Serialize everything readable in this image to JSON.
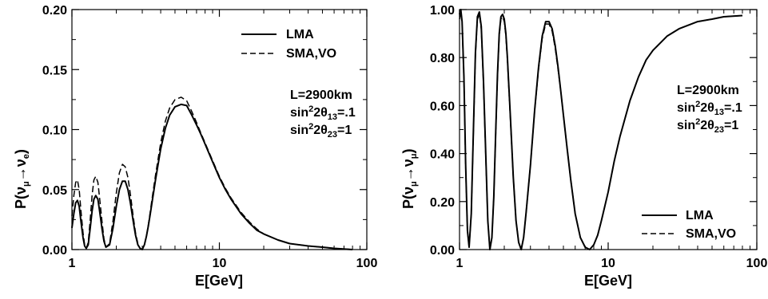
{
  "chart_data": [
    {
      "type": "line",
      "xscale": "log",
      "xlim": [
        1,
        100
      ],
      "ylim": [
        0,
        0.2
      ],
      "xticks": [
        1,
        10,
        100
      ],
      "xtick_labels": [
        "1",
        "10",
        "100"
      ],
      "yticks": [
        0,
        0.05,
        0.1,
        0.15,
        0.2
      ],
      "ytick_labels": [
        "0.00",
        "0.05",
        "0.10",
        "0.15",
        "0.20"
      ],
      "xlabel": "E[GeV]",
      "ylabel": "P(ν_μ→ν_e)",
      "grid": false,
      "legend_position": "top-right",
      "annotations": [
        "L=2900km",
        "sin²2θ13=.1",
        "sin²2θ23=1"
      ],
      "series": [
        {
          "name": "LMA",
          "style": "solid",
          "x": [
            1.0,
            1.03,
            1.06,
            1.09,
            1.12,
            1.15,
            1.19,
            1.22,
            1.25,
            1.29,
            1.33,
            1.37,
            1.41,
            1.45,
            1.5,
            1.55,
            1.6,
            1.65,
            1.7,
            1.8,
            1.9,
            2.0,
            2.1,
            2.2,
            2.3,
            2.4,
            2.5,
            2.6,
            2.7,
            2.8,
            2.9,
            3.0,
            3.1,
            3.2,
            3.3,
            3.4,
            3.5,
            3.7,
            4.0,
            4.3,
            4.6,
            5.0,
            5.5,
            6.0,
            6.5,
            7.0,
            7.5,
            8.0,
            9.0,
            10.0,
            11.0,
            12.0,
            14.0,
            16.0,
            18.0,
            20.0,
            25.0,
            30.0,
            40.0,
            50.0,
            60.0,
            80.0
          ],
          "y": [
            0.018,
            0.03,
            0.039,
            0.041,
            0.036,
            0.024,
            0.01,
            0.003,
            0.001,
            0.004,
            0.018,
            0.032,
            0.042,
            0.045,
            0.042,
            0.03,
            0.017,
            0.007,
            0.002,
            0.004,
            0.018,
            0.036,
            0.05,
            0.057,
            0.057,
            0.05,
            0.038,
            0.024,
            0.012,
            0.004,
            0.001,
            0.0,
            0.004,
            0.011,
            0.02,
            0.03,
            0.04,
            0.059,
            0.084,
            0.101,
            0.112,
            0.119,
            0.121,
            0.12,
            0.112,
            0.104,
            0.096,
            0.088,
            0.073,
            0.06,
            0.05,
            0.042,
            0.03,
            0.022,
            0.016,
            0.013,
            0.008,
            0.005,
            0.003,
            0.002,
            0.001,
            0.0
          ]
        },
        {
          "name": "SMA,VO",
          "style": "dashed",
          "x": [
            1.0,
            1.03,
            1.06,
            1.09,
            1.12,
            1.15,
            1.19,
            1.22,
            1.25,
            1.29,
            1.33,
            1.37,
            1.41,
            1.45,
            1.5,
            1.55,
            1.6,
            1.65,
            1.7,
            1.8,
            1.9,
            2.0,
            2.1,
            2.2,
            2.3,
            2.4,
            2.5,
            2.6,
            2.7,
            2.8,
            2.9,
            3.0,
            3.1,
            3.2,
            3.3,
            3.4,
            3.5,
            3.7,
            4.0,
            4.3,
            4.6,
            5.0,
            5.5,
            6.0,
            6.5,
            7.0,
            7.5,
            8.0,
            9.0,
            10.0,
            11.0,
            12.0,
            14.0,
            16.0,
            18.0,
            20.0,
            25.0,
            30.0,
            40.0,
            50.0,
            60.0,
            80.0
          ],
          "y": [
            0.028,
            0.045,
            0.056,
            0.058,
            0.05,
            0.033,
            0.014,
            0.004,
            0.001,
            0.006,
            0.025,
            0.045,
            0.058,
            0.061,
            0.056,
            0.04,
            0.023,
            0.009,
            0.002,
            0.005,
            0.024,
            0.047,
            0.064,
            0.071,
            0.069,
            0.06,
            0.045,
            0.028,
            0.014,
            0.005,
            0.001,
            0.0,
            0.004,
            0.011,
            0.021,
            0.032,
            0.043,
            0.063,
            0.089,
            0.107,
            0.118,
            0.125,
            0.127,
            0.124,
            0.115,
            0.106,
            0.097,
            0.089,
            0.074,
            0.061,
            0.051,
            0.043,
            0.031,
            0.023,
            0.017,
            0.013,
            0.008,
            0.005,
            0.003,
            0.002,
            0.001,
            0.0
          ]
        }
      ]
    },
    {
      "type": "line",
      "xscale": "log",
      "xlim": [
        1,
        100
      ],
      "ylim": [
        0,
        1.0
      ],
      "xticks": [
        1,
        10,
        100
      ],
      "xtick_labels": [
        "1",
        "10",
        "100"
      ],
      "yticks": [
        0,
        0.2,
        0.4,
        0.6,
        0.8,
        1.0
      ],
      "ytick_labels": [
        "0.00",
        "0.20",
        "0.40",
        "0.60",
        "0.80",
        "1.00"
      ],
      "xlabel": "E[GeV]",
      "ylabel": "P(ν_μ→ν_μ)",
      "grid": false,
      "legend_position": "bottom-right",
      "annotations": [
        "L=2900km",
        "sin²2θ13=.1",
        "sin²2θ23=1"
      ],
      "series": [
        {
          "name": "LMA",
          "style": "solid",
          "x": [
            1.0,
            1.02,
            1.04,
            1.07,
            1.1,
            1.13,
            1.16,
            1.2,
            1.24,
            1.28,
            1.32,
            1.36,
            1.4,
            1.45,
            1.5,
            1.55,
            1.6,
            1.65,
            1.7,
            1.75,
            1.8,
            1.85,
            1.9,
            1.95,
            2.0,
            2.05,
            2.1,
            2.2,
            2.3,
            2.4,
            2.5,
            2.6,
            2.7,
            2.8,
            3.0,
            3.2,
            3.4,
            3.6,
            3.8,
            4.0,
            4.2,
            4.4,
            4.6,
            4.8,
            5.0,
            5.3,
            5.6,
            6.0,
            6.5,
            7.0,
            7.5,
            8.0,
            8.5,
            9.0,
            10.0,
            11.0,
            12.0,
            14.0,
            16.0,
            18.0,
            20.0,
            25.0,
            30.0,
            40.0,
            50.0,
            60.0,
            80.0
          ],
          "y": [
            0.98,
            1.0,
            0.95,
            0.72,
            0.35,
            0.08,
            0.01,
            0.15,
            0.5,
            0.82,
            0.97,
            0.99,
            0.93,
            0.7,
            0.4,
            0.12,
            0.0,
            0.05,
            0.22,
            0.48,
            0.73,
            0.9,
            0.97,
            0.98,
            0.96,
            0.9,
            0.8,
            0.55,
            0.3,
            0.12,
            0.03,
            0.0,
            0.05,
            0.15,
            0.35,
            0.58,
            0.76,
            0.89,
            0.95,
            0.95,
            0.92,
            0.85,
            0.76,
            0.66,
            0.56,
            0.42,
            0.29,
            0.15,
            0.05,
            0.01,
            0.0,
            0.02,
            0.06,
            0.12,
            0.24,
            0.37,
            0.47,
            0.62,
            0.72,
            0.79,
            0.83,
            0.89,
            0.92,
            0.95,
            0.96,
            0.97,
            0.975
          ]
        },
        {
          "name": "SMA,VO",
          "style": "dashed",
          "x": [
            1.0,
            1.02,
            1.04,
            1.07,
            1.1,
            1.13,
            1.16,
            1.2,
            1.24,
            1.28,
            1.32,
            1.36,
            1.4,
            1.45,
            1.5,
            1.55,
            1.6,
            1.65,
            1.7,
            1.75,
            1.8,
            1.85,
            1.9,
            1.95,
            2.0,
            2.05,
            2.1,
            2.2,
            2.3,
            2.4,
            2.5,
            2.6,
            2.7,
            2.8,
            3.0,
            3.2,
            3.4,
            3.6,
            3.8,
            4.0,
            4.2,
            4.4,
            4.6,
            4.8,
            5.0,
            5.3,
            5.6,
            6.0,
            6.5,
            7.0,
            7.5,
            8.0,
            8.5,
            9.0,
            10.0,
            11.0,
            12.0,
            14.0,
            16.0,
            18.0,
            20.0,
            25.0,
            30.0,
            40.0,
            50.0,
            60.0,
            80.0
          ],
          "y": [
            0.96,
            0.99,
            0.94,
            0.71,
            0.34,
            0.08,
            0.01,
            0.15,
            0.49,
            0.81,
            0.96,
            0.98,
            0.92,
            0.69,
            0.39,
            0.12,
            0.0,
            0.05,
            0.22,
            0.47,
            0.72,
            0.89,
            0.96,
            0.97,
            0.95,
            0.89,
            0.79,
            0.54,
            0.3,
            0.12,
            0.03,
            0.0,
            0.05,
            0.15,
            0.35,
            0.58,
            0.75,
            0.88,
            0.94,
            0.94,
            0.91,
            0.84,
            0.75,
            0.66,
            0.56,
            0.42,
            0.29,
            0.15,
            0.05,
            0.01,
            0.0,
            0.02,
            0.06,
            0.12,
            0.24,
            0.37,
            0.47,
            0.62,
            0.72,
            0.79,
            0.83,
            0.89,
            0.92,
            0.95,
            0.96,
            0.97,
            0.975
          ]
        }
      ]
    }
  ],
  "annotation_parts": {
    "baseline": "L=2900km",
    "mix13_prefix": "sin",
    "mix13_sup": "2",
    "mix13_mid": "2θ",
    "mix13_sub": "13",
    "mix13_suffix": "=.1",
    "mix23_prefix": "sin",
    "mix23_sup": "2",
    "mix23_mid": "2θ",
    "mix23_sub": "23",
    "mix23_suffix": "=1"
  },
  "ylabel_parts": {
    "left": {
      "p": "P(",
      "nu1": "ν",
      "sub1": "μ",
      "arrow": "→",
      "nu2": "ν",
      "sub2": "e",
      "close": ")"
    },
    "right": {
      "p": "P(",
      "nu1": "ν",
      "sub1": "μ",
      "arrow": "→",
      "nu2": "ν",
      "sub2": "μ",
      "close": ")"
    }
  }
}
